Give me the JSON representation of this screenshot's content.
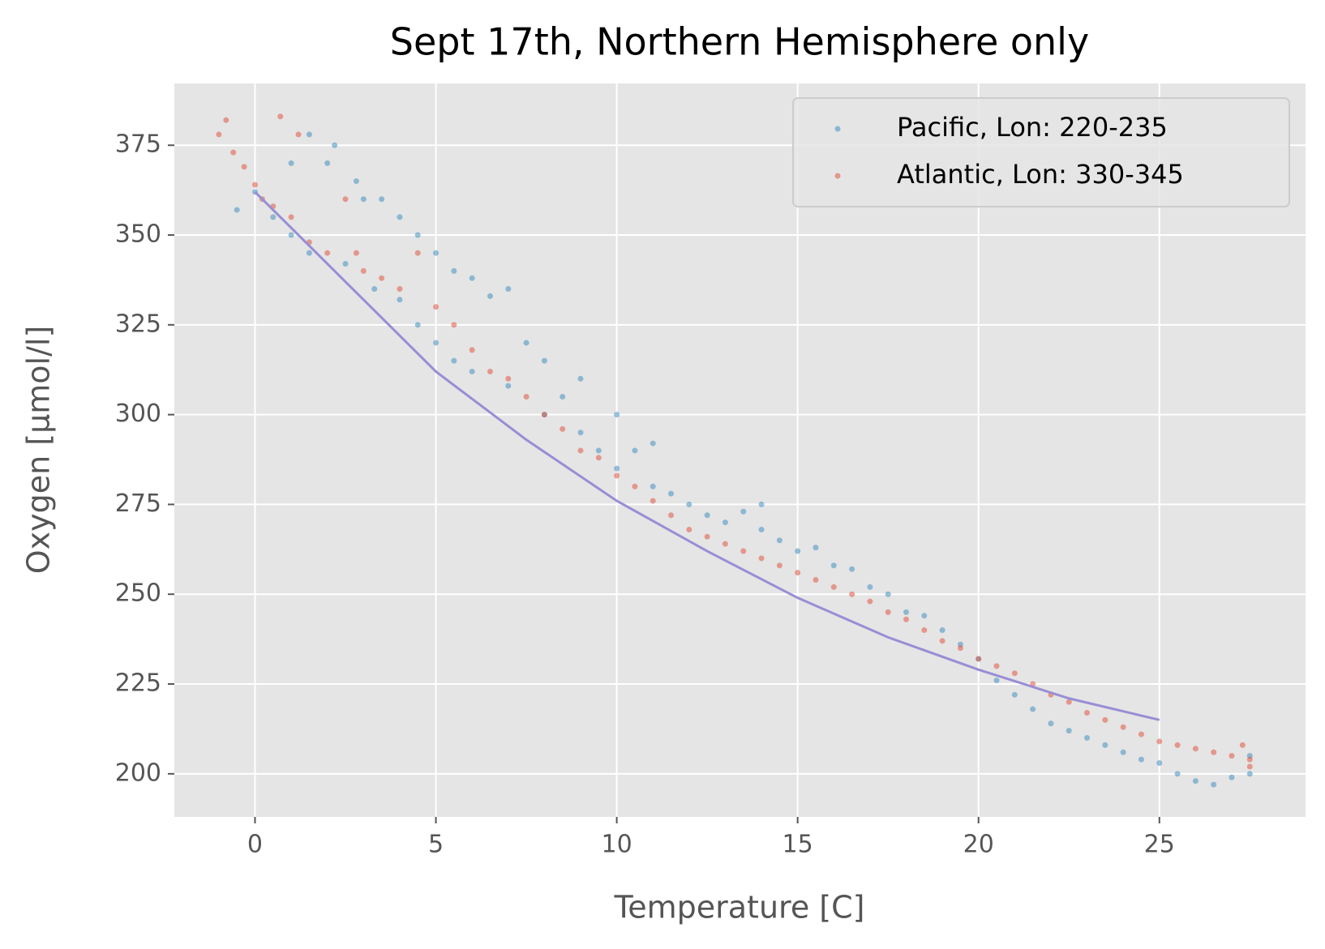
{
  "chart_data": {
    "type": "scatter",
    "title": "Sept 17th, Northern Hemisphere only",
    "x_label": "Temperature [C]",
    "y_label": "Oxygen [μmol/l]",
    "xlim": [
      -2.23,
      29.04
    ],
    "ylim": [
      188.0,
      392.2
    ],
    "xticks": [
      0,
      5,
      10,
      15,
      20,
      25
    ],
    "yticks": [
      200,
      225,
      250,
      275,
      300,
      325,
      350,
      375
    ],
    "grid": true,
    "legend": "upper right",
    "series": [
      {
        "name": "Pacific, Lon: 220-235",
        "color": "#348abd",
        "x": [
          -0.5,
          0,
          0.5,
          1,
          1,
          1.5,
          1.5,
          2,
          2.2,
          2.5,
          2.8,
          3,
          3.3,
          3.5,
          4,
          4,
          4.5,
          4.5,
          5,
          5,
          5.5,
          5.5,
          6,
          6,
          6.5,
          7,
          7,
          7.5,
          8,
          8,
          8.5,
          9,
          9,
          9.5,
          10,
          10,
          10.5,
          11,
          11,
          11.5,
          12,
          12.5,
          13,
          13.5,
          14,
          14,
          14.5,
          15,
          15.5,
          16,
          16.5,
          17,
          17.5,
          18,
          18.5,
          19,
          19.5,
          20,
          20.5,
          21,
          21.5,
          22,
          22.5,
          23,
          23.5,
          24,
          24.5,
          25,
          25.5,
          26,
          26.5,
          27,
          27.5,
          27.5
        ],
        "values": [
          357,
          362,
          355,
          350,
          370,
          378,
          345,
          370,
          375,
          342,
          365,
          360,
          335,
          360,
          332,
          355,
          350,
          325,
          345,
          320,
          340,
          315,
          338,
          312,
          333,
          308,
          335,
          320,
          300,
          315,
          305,
          295,
          310,
          290,
          300,
          285,
          290,
          292,
          280,
          278,
          275,
          272,
          270,
          273,
          275,
          268,
          265,
          262,
          263,
          258,
          257,
          252,
          250,
          245,
          244,
          240,
          236,
          232,
          226,
          222,
          218,
          214,
          212,
          210,
          208,
          206,
          204,
          203,
          200,
          198,
          197,
          199,
          200,
          205
        ]
      },
      {
        "name": "Atlantic, Lon: 330-345",
        "color": "#e24a33",
        "x": [
          -1,
          -0.8,
          -0.6,
          -0.3,
          0,
          0.2,
          0.7,
          0.5,
          1,
          1.2,
          1.5,
          2,
          2.5,
          2.8,
          3,
          3.5,
          4,
          4.5,
          5,
          5.5,
          6,
          6.5,
          7,
          7.5,
          8,
          8.5,
          9,
          9.5,
          10,
          10.5,
          11,
          11.5,
          12,
          12.5,
          13,
          13.5,
          14,
          14.5,
          15,
          15.5,
          16,
          16.5,
          17,
          17.5,
          18,
          18.5,
          19,
          19.5,
          20,
          20.5,
          21,
          21.5,
          22,
          22.5,
          23,
          23.5,
          24,
          24.5,
          25,
          25.5,
          26,
          26.5,
          27,
          27.5,
          27.3,
          27.5
        ],
        "values": [
          378,
          382,
          373,
          369,
          364,
          360,
          383,
          358,
          355,
          378,
          348,
          345,
          360,
          345,
          340,
          338,
          335,
          345,
          330,
          325,
          318,
          312,
          310,
          305,
          300,
          296,
          290,
          288,
          283,
          280,
          276,
          272,
          268,
          266,
          264,
          262,
          260,
          258,
          256,
          254,
          252,
          250,
          248,
          245,
          243,
          240,
          237,
          235,
          232,
          230,
          228,
          225,
          222,
          220,
          217,
          215,
          213,
          211,
          209,
          208,
          207,
          206,
          205,
          204,
          208,
          202
        ]
      }
    ],
    "line": {
      "color": "#988ed5",
      "x": [
        0,
        2.5,
        5,
        7.5,
        10,
        12.5,
        15,
        17.5,
        20,
        22.5,
        25
      ],
      "values": [
        362,
        337,
        312,
        293,
        276,
        262,
        249,
        238,
        229,
        221,
        215
      ]
    }
  }
}
